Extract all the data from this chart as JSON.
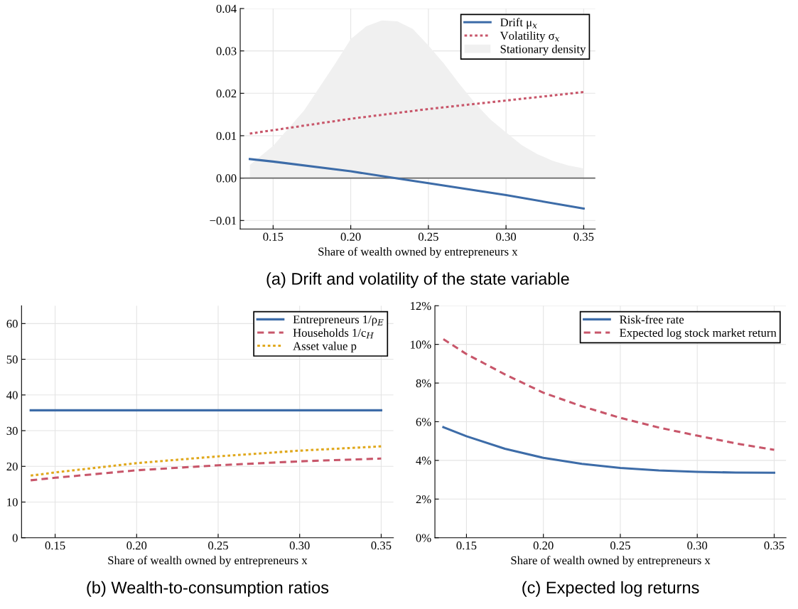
{
  "chart_data": [
    {
      "type": "line",
      "title": "(a) Drift and volatility of the state variable",
      "xlabel": "Share of wealth owned by entrepreneurs x",
      "xlim": [
        0.1288,
        0.3575
      ],
      "xticks": [
        {
          "value": 0.15,
          "label": "0.15"
        },
        {
          "value": 0.2,
          "label": "0.20"
        },
        {
          "value": 0.25,
          "label": "0.25"
        },
        {
          "value": 0.3,
          "label": "0.30"
        },
        {
          "value": 0.35,
          "label": "0.35"
        }
      ],
      "ylim": [
        -0.012,
        0.04
      ],
      "yticks": [
        {
          "value": -0.01,
          "label": "−0.01"
        },
        {
          "value": 0.0,
          "label": "0.00"
        },
        {
          "value": 0.01,
          "label": "0.01"
        },
        {
          "value": 0.02,
          "label": "0.02"
        },
        {
          "value": 0.03,
          "label": "0.03"
        },
        {
          "value": 0.04,
          "label": "0.04"
        }
      ],
      "grid": true,
      "legend": "top right",
      "ref_lines": [
        {
          "axis": "y",
          "value": 0,
          "color": "#666666"
        }
      ],
      "series": [
        {
          "name": "Drift μ$_{x}$",
          "type": "line",
          "color": "#3d6ca8",
          "line_style": "solid",
          "x": [
            0.135,
            0.15,
            0.2,
            0.25,
            0.3,
            0.35
          ],
          "values": [
            0.0045,
            0.0039,
            0.0016,
            -0.0012,
            -0.004,
            -0.0072
          ]
        },
        {
          "name": "Volatility σ$_{x}$",
          "type": "line",
          "color": "#c8566a",
          "line_style": "dotted",
          "x": [
            0.135,
            0.15,
            0.2,
            0.25,
            0.3,
            0.35
          ],
          "values": [
            0.0105,
            0.0113,
            0.014,
            0.0163,
            0.0183,
            0.0203
          ]
        },
        {
          "name": "Stationary density",
          "type": "area",
          "color": "#f0f0f0",
          "x": [
            0.135,
            0.15,
            0.17,
            0.19,
            0.2,
            0.21,
            0.22,
            0.23,
            0.24,
            0.25,
            0.26,
            0.27,
            0.28,
            0.29,
            0.3,
            0.31,
            0.32,
            0.33,
            0.34,
            0.35
          ],
          "values": [
            0.0031,
            0.0076,
            0.016,
            0.027,
            0.0328,
            0.0358,
            0.0372,
            0.037,
            0.0352,
            0.0313,
            0.027,
            0.0222,
            0.0177,
            0.0138,
            0.0108,
            0.0078,
            0.0057,
            0.0041,
            0.003,
            0.0023
          ]
        }
      ]
    },
    {
      "type": "line",
      "title": "(b) Wealth-to-consumption ratios",
      "xlabel": "Share of wealth owned by entrepreneurs x",
      "xlim": [
        0.1294,
        0.3575
      ],
      "xticks": [
        {
          "value": 0.15,
          "label": "0.15"
        },
        {
          "value": 0.2,
          "label": "0.20"
        },
        {
          "value": 0.25,
          "label": "0.25"
        },
        {
          "value": 0.3,
          "label": "0.30"
        },
        {
          "value": 0.35,
          "label": "0.35"
        }
      ],
      "ylim": [
        0,
        65
      ],
      "yticks": [
        0,
        10,
        20,
        30,
        40,
        50,
        60
      ],
      "grid": true,
      "legend": "top right",
      "series": [
        {
          "name": "Entrepreneurs 1/ρ$_{E}$",
          "color": "#3d6ca8",
          "line_style": "solid",
          "x": [
            0.135,
            0.35
          ],
          "values": [
            35.7,
            35.7
          ]
        },
        {
          "name": "Households 1/c$_{H}$",
          "color": "#c8566a",
          "line_style": "dashed",
          "x": [
            0.135,
            0.15,
            0.2,
            0.25,
            0.3,
            0.35
          ],
          "values": [
            16.1,
            16.8,
            18.9,
            20.3,
            21.4,
            22.2
          ]
        },
        {
          "name": "Asset value p",
          "color": "#e0a81c",
          "line_style": "dotted",
          "x": [
            0.135,
            0.15,
            0.2,
            0.25,
            0.3,
            0.35
          ],
          "values": [
            17.4,
            18.3,
            20.9,
            22.8,
            24.4,
            25.6
          ]
        }
      ]
    },
    {
      "type": "line",
      "title": "(c) Expected log returns",
      "xlabel": "Share of wealth owned by entrepreneurs x",
      "xlim": [
        0.1295,
        0.3577
      ],
      "xticks": [
        {
          "value": 0.15,
          "label": "0.15"
        },
        {
          "value": 0.2,
          "label": "0.20"
        },
        {
          "value": 0.25,
          "label": "0.25"
        },
        {
          "value": 0.3,
          "label": "0.30"
        },
        {
          "value": 0.35,
          "label": "0.35"
        }
      ],
      "ylim": [
        0,
        12
      ],
      "yticks": [
        {
          "value": 0,
          "label": "0%"
        },
        {
          "value": 2,
          "label": "2%"
        },
        {
          "value": 4,
          "label": "4%"
        },
        {
          "value": 6,
          "label": "6%"
        },
        {
          "value": 8,
          "label": "8%"
        },
        {
          "value": 10,
          "label": "10%"
        },
        {
          "value": 12,
          "label": "12%"
        }
      ],
      "grid": true,
      "legend": "top right",
      "series": [
        {
          "name": "Risk-free rate",
          "color": "#3d6ca8",
          "line_style": "solid",
          "x": [
            0.135,
            0.15,
            0.175,
            0.2,
            0.225,
            0.25,
            0.275,
            0.3,
            0.325,
            0.35
          ],
          "values": [
            5.72,
            5.25,
            4.6,
            4.13,
            3.82,
            3.61,
            3.48,
            3.41,
            3.37,
            3.36
          ]
        },
        {
          "name": "Expected log stock market return",
          "color": "#c8566a",
          "line_style": "dashed",
          "x": [
            0.135,
            0.15,
            0.175,
            0.2,
            0.225,
            0.25,
            0.275,
            0.3,
            0.325,
            0.35
          ],
          "values": [
            10.27,
            9.5,
            8.45,
            7.5,
            6.8,
            6.2,
            5.7,
            5.28,
            4.88,
            4.55
          ]
        }
      ]
    }
  ]
}
